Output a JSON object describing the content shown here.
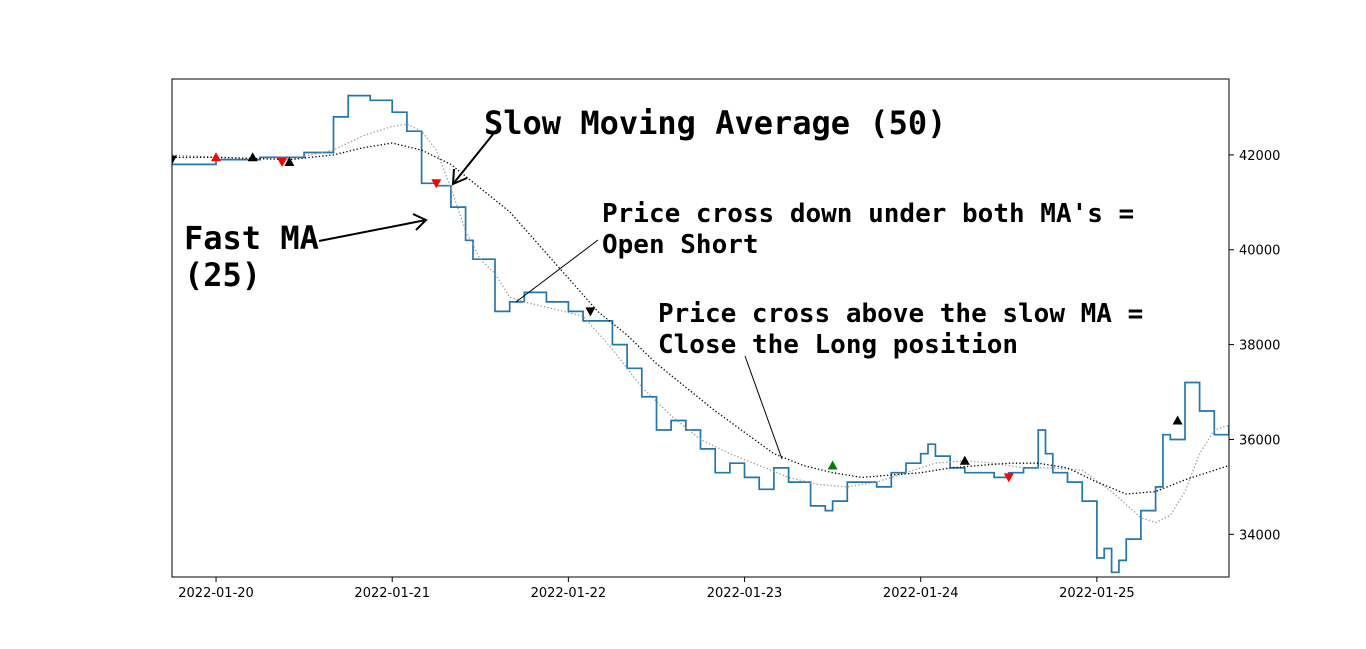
{
  "chart_data": {
    "type": "line",
    "title": "",
    "xlabel": "",
    "ylabel": "",
    "x_tick_labels": [
      "2022-01-20",
      "2022-01-21",
      "2022-01-22",
      "2022-01-23",
      "2022-01-24",
      "2022-01-25"
    ],
    "y_tick_labels": [
      "34000",
      "36000",
      "38000",
      "40000",
      "42000"
    ],
    "y_ticks": [
      34000,
      36000,
      38000,
      40000,
      42000
    ],
    "xlim": [
      "2022-01-19 18:00",
      "2022-01-25 18:00"
    ],
    "ylim": [
      33100,
      43600
    ],
    "y_axis_side": "right",
    "grid": false,
    "series": [
      {
        "name": "",
        "style": "step",
        "color": "#1f77b4",
        "points": [
          [
            "2022-01-19 18:00",
            41800
          ],
          [
            "2022-01-20 00:00",
            41900
          ],
          [
            "2022-01-20 06:00",
            41950
          ],
          [
            "2022-01-20 12:00",
            42050
          ],
          [
            "2022-01-20 16:00",
            42800
          ],
          [
            "2022-01-20 18:00",
            43250
          ],
          [
            "2022-01-20 21:00",
            43150
          ],
          [
            "2022-01-21 00:00",
            42900
          ],
          [
            "2022-01-21 02:00",
            42500
          ],
          [
            "2022-01-21 04:00",
            41400
          ],
          [
            "2022-01-21 06:00",
            41350
          ],
          [
            "2022-01-21 08:00",
            40900
          ],
          [
            "2022-01-21 10:00",
            40200
          ],
          [
            "2022-01-21 11:00",
            39800
          ],
          [
            "2022-01-21 14:00",
            38700
          ],
          [
            "2022-01-21 16:00",
            38900
          ],
          [
            "2022-01-21 18:00",
            39100
          ],
          [
            "2022-01-21 21:00",
            38900
          ],
          [
            "2022-01-22 00:00",
            38700
          ],
          [
            "2022-01-22 02:00",
            38500
          ],
          [
            "2022-01-22 06:00",
            38000
          ],
          [
            "2022-01-22 08:00",
            37500
          ],
          [
            "2022-01-22 10:00",
            36900
          ],
          [
            "2022-01-22 12:00",
            36200
          ],
          [
            "2022-01-22 14:00",
            36400
          ],
          [
            "2022-01-22 16:00",
            36200
          ],
          [
            "2022-01-22 18:00",
            35800
          ],
          [
            "2022-01-22 20:00",
            35300
          ],
          [
            "2022-01-22 22:00",
            35500
          ],
          [
            "2022-01-23 00:00",
            35200
          ],
          [
            "2022-01-23 02:00",
            34950
          ],
          [
            "2022-01-23 04:00",
            35400
          ],
          [
            "2022-01-23 06:00",
            35100
          ],
          [
            "2022-01-23 09:00",
            34600
          ],
          [
            "2022-01-23 11:00",
            34500
          ],
          [
            "2022-01-23 12:00",
            34700
          ],
          [
            "2022-01-23 14:00",
            35100
          ],
          [
            "2022-01-23 16:00",
            35100
          ],
          [
            "2022-01-23 18:00",
            35000
          ],
          [
            "2022-01-23 20:00",
            35300
          ],
          [
            "2022-01-23 22:00",
            35500
          ],
          [
            "2022-01-24 00:00",
            35700
          ],
          [
            "2022-01-24 01:00",
            35900
          ],
          [
            "2022-01-24 02:00",
            35650
          ],
          [
            "2022-01-24 04:00",
            35400
          ],
          [
            "2022-01-24 06:00",
            35300
          ],
          [
            "2022-01-24 08:00",
            35300
          ],
          [
            "2022-01-24 10:00",
            35200
          ],
          [
            "2022-01-24 12:00",
            35300
          ],
          [
            "2022-01-24 14:00",
            35400
          ],
          [
            "2022-01-24 16:00",
            36200
          ],
          [
            "2022-01-24 17:00",
            35700
          ],
          [
            "2022-01-24 18:00",
            35300
          ],
          [
            "2022-01-24 20:00",
            35100
          ],
          [
            "2022-01-24 22:00",
            34700
          ],
          [
            "2022-01-25 00:00",
            33500
          ],
          [
            "2022-01-25 01:00",
            33700
          ],
          [
            "2022-01-25 02:00",
            33200
          ],
          [
            "2022-01-25 03:00",
            33450
          ],
          [
            "2022-01-25 04:00",
            33900
          ],
          [
            "2022-01-25 06:00",
            34500
          ],
          [
            "2022-01-25 08:00",
            35000
          ],
          [
            "2022-01-25 09:00",
            36100
          ],
          [
            "2022-01-25 10:00",
            36000
          ],
          [
            "2022-01-25 12:00",
            37200
          ],
          [
            "2022-01-25 14:00",
            36600
          ],
          [
            "2022-01-25 16:00",
            36100
          ],
          [
            "2022-01-25 18:00",
            36300
          ]
        ]
      },
      {
        "name": "",
        "style": "dotted",
        "color": "#999999",
        "points": [
          [
            "2022-01-19 18:00",
            42000
          ],
          [
            "2022-01-20 00:00",
            41950
          ],
          [
            "2022-01-20 10:00",
            41900
          ],
          [
            "2022-01-20 16:00",
            42100
          ],
          [
            "2022-01-20 20:00",
            42400
          ],
          [
            "2022-01-21 00:00",
            42600
          ],
          [
            "2022-01-21 02:00",
            42650
          ],
          [
            "2022-01-21 04:00",
            42500
          ],
          [
            "2022-01-21 06:00",
            42100
          ],
          [
            "2022-01-21 08:00",
            41300
          ],
          [
            "2022-01-21 10:00",
            40400
          ],
          [
            "2022-01-21 12:00",
            39800
          ],
          [
            "2022-01-21 14:00",
            39500
          ],
          [
            "2022-01-21 16:00",
            39000
          ],
          [
            "2022-01-21 18:00",
            38900
          ],
          [
            "2022-01-21 22:00",
            38750
          ],
          [
            "2022-01-22 02:00",
            38600
          ],
          [
            "2022-01-22 06:00",
            37900
          ],
          [
            "2022-01-22 10:00",
            37100
          ],
          [
            "2022-01-22 14:00",
            36500
          ],
          [
            "2022-01-22 18:00",
            36000
          ],
          [
            "2022-01-22 22:00",
            35700
          ],
          [
            "2022-01-23 02:00",
            35450
          ],
          [
            "2022-01-23 06:00",
            35200
          ],
          [
            "2022-01-23 10:00",
            35050
          ],
          [
            "2022-01-23 14:00",
            35000
          ],
          [
            "2022-01-23 18:00",
            35100
          ],
          [
            "2022-01-23 22:00",
            35300
          ],
          [
            "2022-01-24 02:00",
            35500
          ],
          [
            "2022-01-24 06:00",
            35550
          ],
          [
            "2022-01-24 10:00",
            35500
          ],
          [
            "2022-01-24 14:00",
            35400
          ],
          [
            "2022-01-24 18:00",
            35400
          ],
          [
            "2022-01-24 22:00",
            35350
          ],
          [
            "2022-01-25 02:00",
            34900
          ],
          [
            "2022-01-25 06:00",
            34350
          ],
          [
            "2022-01-25 08:00",
            34250
          ],
          [
            "2022-01-25 10:00",
            34400
          ],
          [
            "2022-01-25 12:00",
            34900
          ],
          [
            "2022-01-25 14:00",
            35700
          ],
          [
            "2022-01-25 16:00",
            36200
          ],
          [
            "2022-01-25 18:00",
            36300
          ]
        ]
      },
      {
        "name": "",
        "style": "dotted",
        "color": "#000000",
        "points": [
          [
            "2022-01-19 18:00",
            41950
          ],
          [
            "2022-01-20 00:00",
            41950
          ],
          [
            "2022-01-20 10:00",
            41900
          ],
          [
            "2022-01-20 16:00",
            42000
          ],
          [
            "2022-01-20 20:00",
            42150
          ],
          [
            "2022-01-21 00:00",
            42250
          ],
          [
            "2022-01-21 04:00",
            42100
          ],
          [
            "2022-01-21 08:00",
            41800
          ],
          [
            "2022-01-21 12:00",
            41300
          ],
          [
            "2022-01-21 16:00",
            40800
          ],
          [
            "2022-01-21 20:00",
            40100
          ],
          [
            "2022-01-22 00:00",
            39400
          ],
          [
            "2022-01-22 04:00",
            38700
          ],
          [
            "2022-01-22 08:00",
            38200
          ],
          [
            "2022-01-22 12:00",
            37600
          ],
          [
            "2022-01-22 16:00",
            37100
          ],
          [
            "2022-01-22 20:00",
            36600
          ],
          [
            "2022-01-23 00:00",
            36150
          ],
          [
            "2022-01-23 04:00",
            35700
          ],
          [
            "2022-01-23 08:00",
            35450
          ],
          [
            "2022-01-23 12:00",
            35300
          ],
          [
            "2022-01-23 16:00",
            35200
          ],
          [
            "2022-01-23 20:00",
            35250
          ],
          [
            "2022-01-24 00:00",
            35300
          ],
          [
            "2022-01-24 04:00",
            35400
          ],
          [
            "2022-01-24 08:00",
            35450
          ],
          [
            "2022-01-24 12:00",
            35500
          ],
          [
            "2022-01-24 16:00",
            35500
          ],
          [
            "2022-01-24 20:00",
            35400
          ],
          [
            "2022-01-25 00:00",
            35100
          ],
          [
            "2022-01-25 04:00",
            34850
          ],
          [
            "2022-01-25 08:00",
            34900
          ],
          [
            "2022-01-25 12:00",
            35150
          ],
          [
            "2022-01-25 16:00",
            35350
          ],
          [
            "2022-01-25 18:00",
            35450
          ]
        ]
      }
    ],
    "markers": [
      {
        "x": "2022-01-19 18:00",
        "y": 41900,
        "shape": "down",
        "color": "#000000"
      },
      {
        "x": "2022-01-20 00:00",
        "y": 41950,
        "shape": "up",
        "color": "#ff0000"
      },
      {
        "x": "2022-01-20 05:00",
        "y": 41950,
        "shape": "up",
        "color": "#000000"
      },
      {
        "x": "2022-01-20 09:00",
        "y": 41850,
        "shape": "down",
        "color": "#ff0000"
      },
      {
        "x": "2022-01-20 10:00",
        "y": 41850,
        "shape": "up",
        "color": "#000000"
      },
      {
        "x": "2022-01-21 06:00",
        "y": 41400,
        "shape": "down",
        "color": "#ff0000"
      },
      {
        "x": "2022-01-22 03:00",
        "y": 38700,
        "shape": "down",
        "color": "#000000"
      },
      {
        "x": "2022-01-23 12:00",
        "y": 35450,
        "shape": "up",
        "color": "#008000"
      },
      {
        "x": "2022-01-24 06:00",
        "y": 35550,
        "shape": "up",
        "color": "#000000"
      },
      {
        "x": "2022-01-24 12:00",
        "y": 35200,
        "shape": "down",
        "color": "#ff0000"
      },
      {
        "x": "2022-01-25 11:00",
        "y": 36400,
        "shape": "up",
        "color": "#000000"
      }
    ],
    "annotations": [
      {
        "text_lines": [
          "Slow Moving Average (50)"
        ]
      },
      {
        "text_lines": [
          "Fast MA",
          "(25)"
        ]
      },
      {
        "text_lines": [
          "Price cross down under both MA's =",
          "Open Short"
        ]
      },
      {
        "text_lines": [
          "Price cross above the slow MA =",
          "Close the Long position"
        ]
      }
    ]
  }
}
